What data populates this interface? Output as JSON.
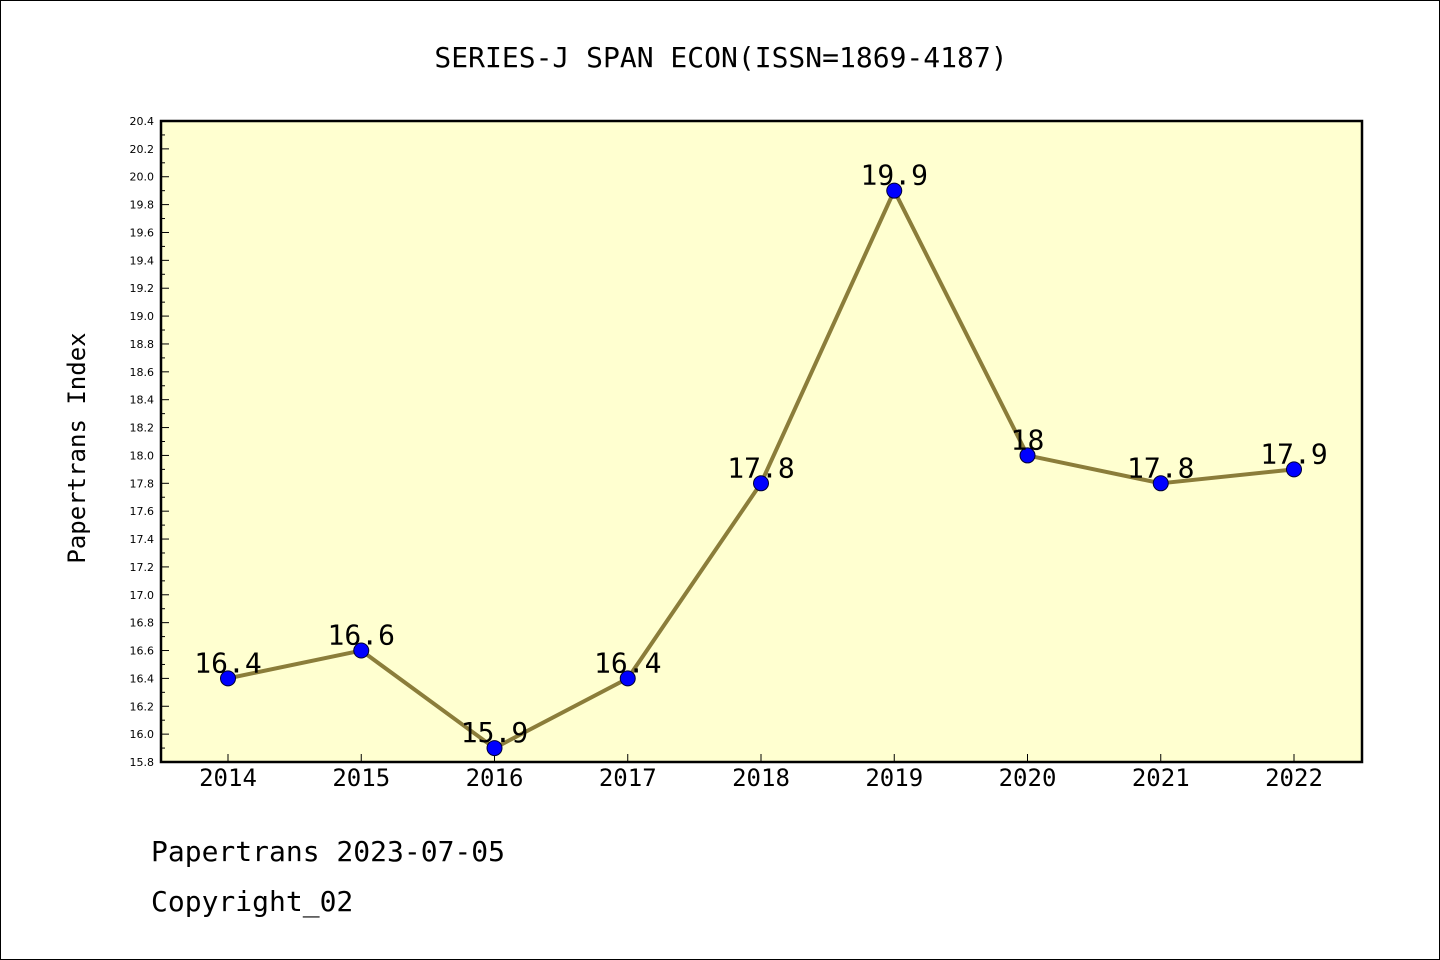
{
  "chart_data": {
    "type": "line",
    "title": "SERIES-J SPAN ECON(ISSN=1869-4187)",
    "xlabel": "",
    "ylabel": "Papertrans Index",
    "categories": [
      "2014",
      "2015",
      "2016",
      "2017",
      "2018",
      "2019",
      "2020",
      "2021",
      "2022"
    ],
    "values": [
      16.4,
      16.6,
      15.9,
      16.4,
      17.8,
      19.9,
      18.0,
      17.8,
      17.9
    ],
    "data_labels": [
      "16.4",
      "16.6",
      "15.9",
      "16.4",
      "17.8",
      "19.9",
      "18",
      "17.8",
      "17.9"
    ],
    "ylim": [
      15.8,
      20.4
    ],
    "yticks": [
      "15.8",
      "16.0",
      "16.2",
      "16.4",
      "16.6",
      "16.8",
      "17.0",
      "17.2",
      "17.4",
      "17.6",
      "17.8",
      "18.0",
      "18.2",
      "18.4",
      "18.6",
      "18.8",
      "19.0",
      "19.2",
      "19.4",
      "19.6",
      "19.8",
      "20.0",
      "20.2",
      "20.4"
    ],
    "grid": false,
    "legend": "none",
    "colors": {
      "plot_background": "#ffffd0",
      "line": "#8b7d3a",
      "marker": "#0000ff"
    }
  },
  "footer": {
    "line1": "Papertrans 2023-07-05",
    "line2": "Copyright_02"
  }
}
